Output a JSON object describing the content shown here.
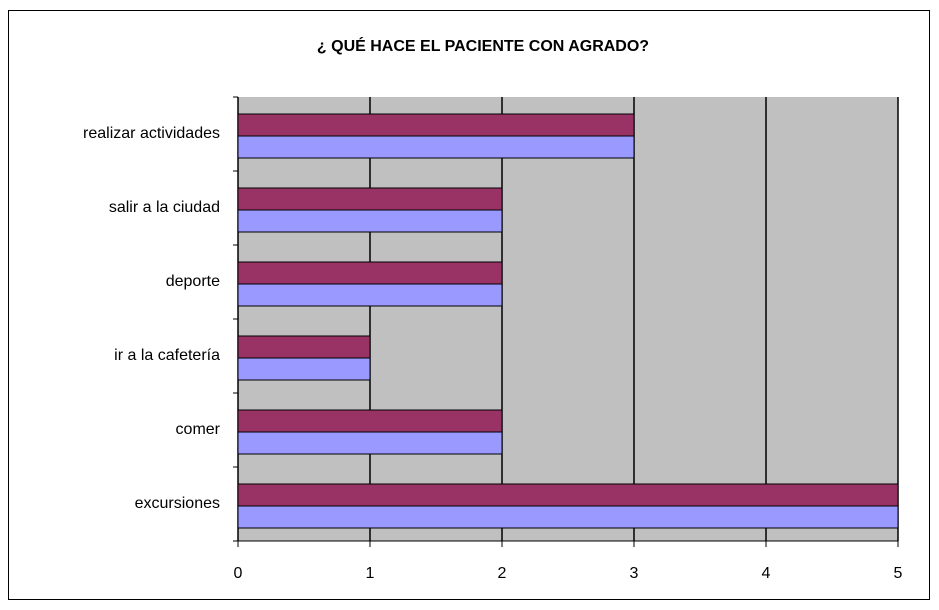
{
  "chart_data": {
    "type": "bar",
    "orientation": "horizontal",
    "title": "¿ QUÉ HACE EL PACIENTE CON AGRADO?",
    "categories": [
      "realizar actividades",
      "salir a la ciudad",
      "deporte",
      "ir a la cafetería",
      "comer",
      "excursiones"
    ],
    "series": [
      {
        "color": "#993366",
        "values": [
          3,
          2,
          2,
          1,
          2,
          5
        ]
      },
      {
        "color": "#9999ff",
        "values": [
          3,
          2,
          2,
          1,
          2,
          5
        ]
      }
    ],
    "xlim": [
      0,
      5
    ],
    "xticks": [
      0,
      1,
      2,
      3,
      4,
      5
    ],
    "grid": true,
    "plot_background": "#c0c0c0"
  }
}
